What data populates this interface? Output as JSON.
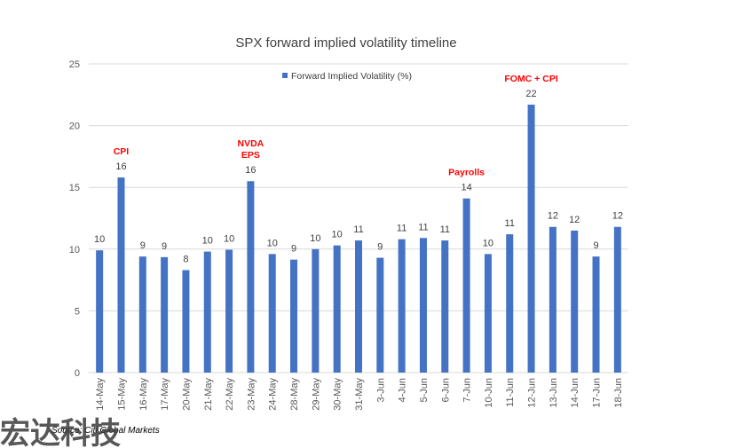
{
  "chart_data": {
    "type": "bar",
    "title": "SPX forward implied volatility timeline",
    "xlabel": "",
    "ylabel": "",
    "ylim": [
      0,
      25
    ],
    "yticks": [
      0,
      5,
      10,
      15,
      20,
      25
    ],
    "grid": true,
    "legend_position": "top-center",
    "categories": [
      "14-May",
      "15-May",
      "16-May",
      "17-May",
      "20-May",
      "21-May",
      "22-May",
      "23-May",
      "24-May",
      "28-May",
      "29-May",
      "30-May",
      "31-May",
      "3-Jun",
      "4-Jun",
      "5-Jun",
      "6-Jun",
      "7-Jun",
      "10-Jun",
      "11-Jun",
      "12-Jun",
      "13-Jun",
      "14-Jun",
      "17-Jun",
      "18-Jun"
    ],
    "series": [
      {
        "name": "Forward Implied Volatility (%)",
        "color": "#4472c4",
        "values": [
          9.9,
          15.8,
          9.4,
          9.35,
          8.3,
          9.8,
          9.95,
          15.5,
          9.6,
          9.15,
          10.0,
          10.3,
          10.7,
          9.3,
          10.8,
          10.9,
          10.7,
          14.1,
          9.6,
          11.2,
          21.7,
          11.8,
          11.5,
          9.4,
          11.8
        ],
        "data_labels": [
          "10",
          "16",
          "9",
          "9",
          "8",
          "10",
          "10",
          "16",
          "10",
          "9",
          "10",
          "10",
          "11",
          "9",
          "11",
          "11",
          "11",
          "14",
          "10",
          "11",
          "22",
          "12",
          "12",
          "9",
          "12"
        ]
      }
    ],
    "annotations": [
      {
        "category": "15-May",
        "lines": [
          "CPI"
        ],
        "color": "#ff0000"
      },
      {
        "category": "23-May",
        "lines": [
          "NVDA",
          "EPS"
        ],
        "color": "#ff0000"
      },
      {
        "category": "7-Jun",
        "lines": [
          "Payrolls"
        ],
        "color": "#ff0000"
      },
      {
        "category": "12-Jun",
        "lines": [
          "FOMC + CPI"
        ],
        "color": "#ff0000"
      }
    ]
  },
  "source": "Source: Citi Global Markets",
  "watermark": "宏达科技"
}
